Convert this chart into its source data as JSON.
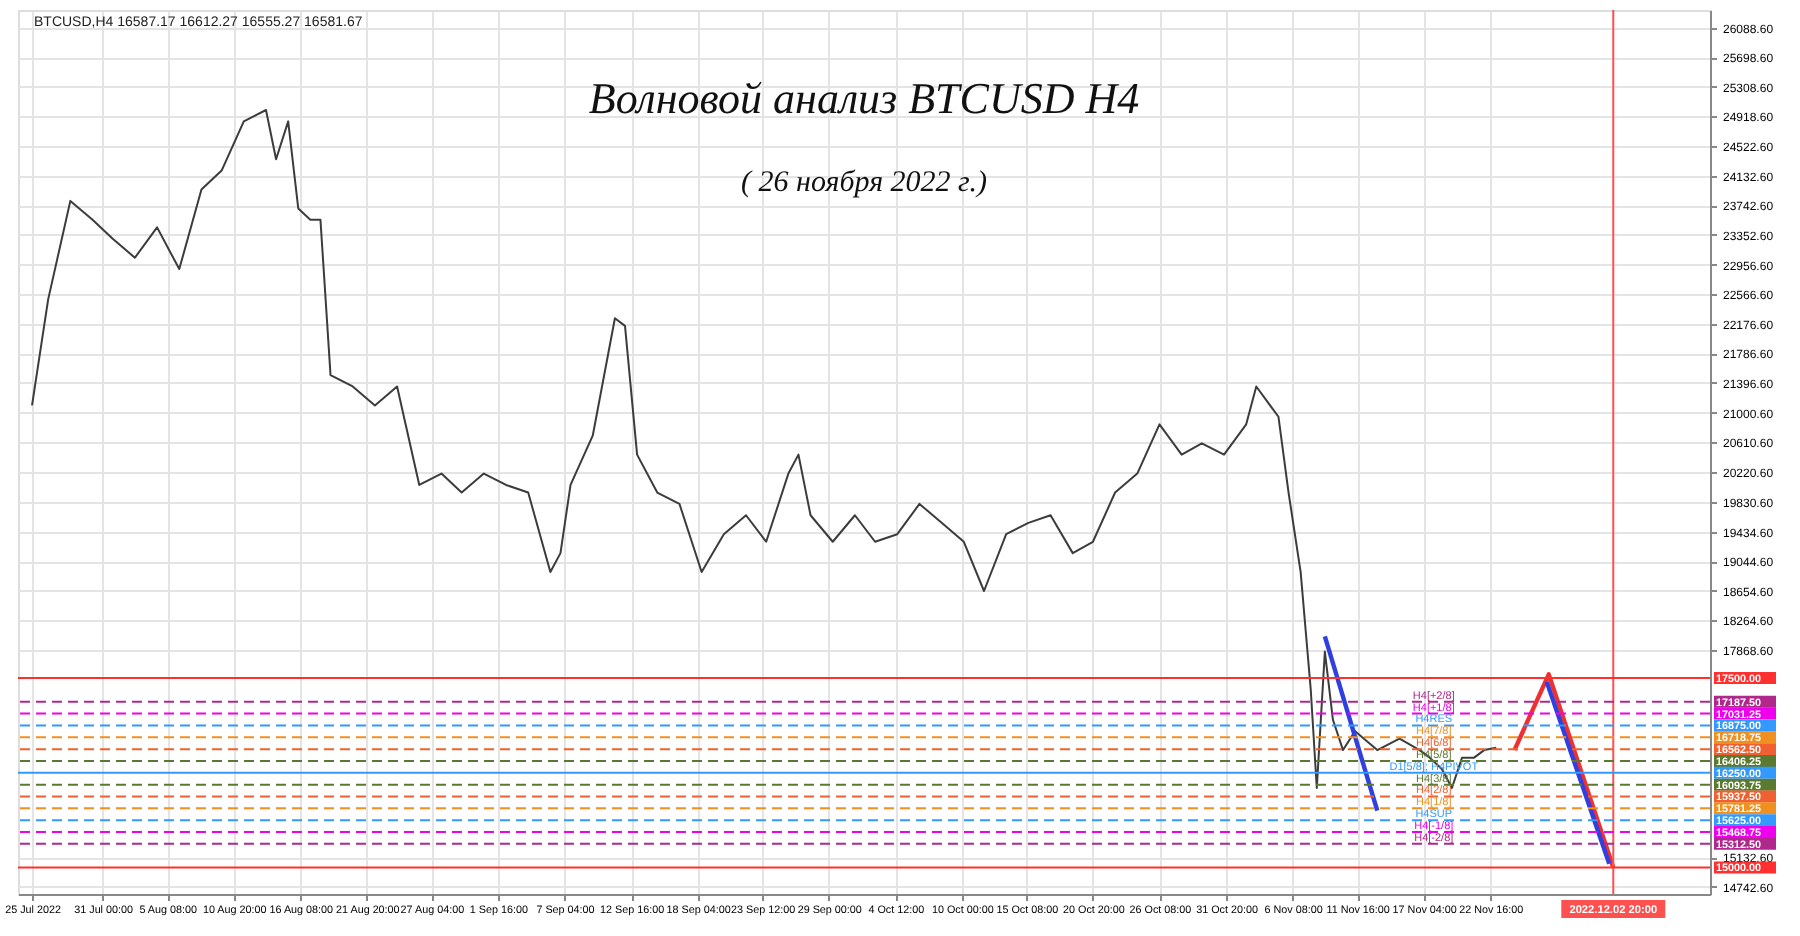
{
  "chart_data": {
    "type": "line",
    "title": "Волновой анализ BTCUSD H4",
    "subtitle": "( 26 ноября 2022 г.)",
    "annotations": [
      "BTCUSD,H4  16587.17 16612.27 16555.27 16581.67",
      {
        "text": "H4[+2/8]",
        "x": "2022-11-18T00:00",
        "y": 17187.5
      },
      {
        "text": "H4[+1/8]",
        "x": "2022-11-18T00:00",
        "y": 17031.25
      },
      {
        "text": "H4RES",
        "x": "2022-11-18T00:00",
        "y": 16875
      },
      {
        "text": "H4[7/8]",
        "x": "2022-11-18T00:00",
        "y": 16718.75
      },
      {
        "text": "H4[6/8]",
        "x": "2022-11-18T00:00",
        "y": 16562.5
      },
      {
        "text": "H4[5/8]",
        "x": "2022-11-18T00:00",
        "y": 16406.25
      },
      {
        "text": "D1[5/8]; H4PIVOT",
        "x": "2022-11-18T00:00",
        "y": 16250
      },
      {
        "text": "H4[3/8]",
        "x": "2022-11-18T00:00",
        "y": 16093.75
      },
      {
        "text": "H4[2/8]",
        "x": "2022-11-18T00:00",
        "y": 15937.5
      },
      {
        "text": "H4[1/8]",
        "x": "2022-11-18T00:00",
        "y": 15781.25
      },
      {
        "text": "H4SUP",
        "x": "2022-11-18T00:00",
        "y": 15625
      },
      {
        "text": "H4[-1/8]",
        "x": "2022-11-18T00:00",
        "y": 15468.75
      },
      {
        "text": "H4[-2/8]",
        "x": "2022-11-18T00:00",
        "y": 15312.5
      }
    ],
    "grid": true,
    "line_style": "solid",
    "marker": "none",
    "xlim": [
      "2022-07-24T20:00",
      "2022-12-10T00:00"
    ],
    "xticks": [
      {
        "value": "2022-07-25T04:00",
        "label": "25 Jul 2022"
      },
      {
        "value": "2022-07-31T00:00",
        "label": "31 Jul 00:00"
      },
      {
        "value": "2022-08-05T08:00",
        "label": "5 Aug 08:00"
      },
      {
        "value": "2022-08-10T20:00",
        "label": "10 Aug 20:00"
      },
      {
        "value": "2022-08-16T08:00",
        "label": "16 Aug 08:00"
      },
      {
        "value": "2022-08-21T20:00",
        "label": "21 Aug 20:00"
      },
      {
        "value": "2022-08-27T04:00",
        "label": "27 Aug 04:00"
      },
      {
        "value": "2022-09-01T16:00",
        "label": "1 Sep 16:00"
      },
      {
        "value": "2022-09-07T04:00",
        "label": "7 Sep 04:00"
      },
      {
        "value": "2022-09-12T16:00",
        "label": "12 Sep 16:00"
      },
      {
        "value": "2022-09-18T04:00",
        "label": "18 Sep 04:00"
      },
      {
        "value": "2022-09-23T12:00",
        "label": "23 Sep 12:00"
      },
      {
        "value": "2022-09-29T00:00",
        "label": "29 Sep 00:00"
      },
      {
        "value": "2022-10-04T12:00",
        "label": "4 Oct 12:00"
      },
      {
        "value": "2022-10-10T00:00",
        "label": "10 Oct 00:00"
      },
      {
        "value": "2022-10-15T08:00",
        "label": "15 Oct 08:00"
      },
      {
        "value": "2022-10-20T20:00",
        "label": "20 Oct 20:00"
      },
      {
        "value": "2022-10-26T08:00",
        "label": "26 Oct 08:00"
      },
      {
        "value": "2022-10-31T20:00",
        "label": "31 Oct 20:00"
      },
      {
        "value": "2022-11-06T08:00",
        "label": "6 Nov 08:00"
      },
      {
        "value": "2022-11-11T16:00",
        "label": "11 Nov 16:00"
      },
      {
        "value": "2022-11-17T04:00",
        "label": "17 Nov 04:00"
      },
      {
        "value": "2022-11-22T16:00",
        "label": "22 Nov 16:00"
      }
    ],
    "ylim": [
      14650,
      26320
    ],
    "yticks": [
      {
        "value": 26088.6,
        "label": "26088.60"
      },
      {
        "value": 25698.6,
        "label": "25698.60"
      },
      {
        "value": 25308.6,
        "label": "25308.60"
      },
      {
        "value": 24918.6,
        "label": "24918.60"
      },
      {
        "value": 24522.6,
        "label": "24522.60"
      },
      {
        "value": 24132.6,
        "label": "24132.60"
      },
      {
        "value": 23742.6,
        "label": "23742.60"
      },
      {
        "value": 23352.6,
        "label": "23352.60"
      },
      {
        "value": 22956.6,
        "label": "22956.60"
      },
      {
        "value": 22566.6,
        "label": "22566.60"
      },
      {
        "value": 22176.6,
        "label": "22176.60"
      },
      {
        "value": 21786.6,
        "label": "21786.60"
      },
      {
        "value": 21396.6,
        "label": "21396.60"
      },
      {
        "value": 21000.6,
        "label": "21000.60"
      },
      {
        "value": 20610.6,
        "label": "20610.60"
      },
      {
        "value": 20220.6,
        "label": "20220.60"
      },
      {
        "value": 19830.6,
        "label": "19830.60"
      },
      {
        "value": 19434.6,
        "label": "19434.60"
      },
      {
        "value": 19044.6,
        "label": "19044.60"
      },
      {
        "value": 18654.6,
        "label": "18654.60"
      },
      {
        "value": 18264.6,
        "label": "18264.60"
      },
      {
        "value": 17868.6,
        "label": "17868.60"
      },
      {
        "value": 15132.6,
        "label": "15132.60"
      },
      {
        "value": 14742.6,
        "label": "14742.60"
      }
    ],
    "series": [
      {
        "color": "#3c3c3c",
        "x": [
          "2022-07-25T04:00",
          "2022-07-26T12:00",
          "2022-07-28T08:00",
          "2022-07-30T04:00",
          "2022-07-31T20:00",
          "2022-08-02T16:00",
          "2022-08-04T12:00",
          "2022-08-06T08:00",
          "2022-08-08T04:00",
          "2022-08-09T20:00",
          "2022-08-11T16:00",
          "2022-08-13T12:00",
          "2022-08-14T08:00",
          "2022-08-15T08:00",
          "2022-08-16T04:00",
          "2022-08-17T04:00",
          "2022-08-18T00:00",
          "2022-08-18T20:00",
          "2022-08-20T16:00",
          "2022-08-22T12:00",
          "2022-08-24T08:00",
          "2022-08-26T04:00",
          "2022-08-28T00:00",
          "2022-08-29T16:00",
          "2022-08-31T12:00",
          "2022-09-02T08:00",
          "2022-09-04T04:00",
          "2022-09-06T00:00",
          "2022-09-06T20:00",
          "2022-09-07T16:00",
          "2022-09-09T12:00",
          "2022-09-11T08:00",
          "2022-09-12T04:00",
          "2022-09-13T04:00",
          "2022-09-14T20:00",
          "2022-09-16T16:00",
          "2022-09-18T12:00",
          "2022-09-20T08:00",
          "2022-09-22T04:00",
          "2022-09-23T20:00",
          "2022-09-25T16:00",
          "2022-09-26T12:00",
          "2022-09-27T12:00",
          "2022-09-29T08:00",
          "2022-10-01T04:00",
          "2022-10-02T20:00",
          "2022-10-04T16:00",
          "2022-10-06T12:00",
          "2022-10-08T08:00",
          "2022-10-10T04:00",
          "2022-10-11T20:00",
          "2022-10-13T16:00",
          "2022-10-15T12:00",
          "2022-10-17T08:00",
          "2022-10-19T04:00",
          "2022-10-20T20:00",
          "2022-10-22T16:00",
          "2022-10-24T12:00",
          "2022-10-26T08:00",
          "2022-10-28T04:00",
          "2022-10-29T20:00",
          "2022-10-31T16:00",
          "2022-11-02T12:00",
          "2022-11-03T08:00",
          "2022-11-05T04:00",
          "2022-11-06T00:00",
          "2022-11-07T00:00",
          "2022-11-07T20:00",
          "2022-11-08T08:00",
          "2022-11-09T00:00",
          "2022-11-09T16:00",
          "2022-11-10T12:00",
          "2022-11-11T12:00",
          "2022-11-13T08:00",
          "2022-11-15T04:00",
          "2022-11-16T20:00",
          "2022-11-17T16:00",
          "2022-11-18T16:00",
          "2022-11-19T12:00",
          "2022-11-20T08:00",
          "2022-11-21T08:00",
          "2022-11-22T04:00",
          "2022-11-23T04:00"
        ],
        "values": [
          21100,
          22500,
          23800,
          23550,
          23300,
          23050,
          23450,
          22900,
          23950,
          24200,
          24850,
          25000,
          24350,
          24850,
          23700,
          23550,
          23550,
          21500,
          21350,
          21100,
          21350,
          20050,
          20200,
          19950,
          20200,
          20050,
          19950,
          18900,
          19150,
          20050,
          20700,
          22250,
          22150,
          20450,
          19950,
          19800,
          18900,
          19400,
          19650,
          19300,
          20200,
          20450,
          19650,
          19300,
          19650,
          19300,
          19400,
          19800,
          19550,
          19300,
          18650,
          19400,
          19550,
          19650,
          19150,
          19300,
          19950,
          20200,
          20850,
          20450,
          20600,
          20450,
          20850,
          21350,
          20950,
          19950,
          18900,
          17350,
          16050,
          17850,
          16950,
          16550,
          16800,
          16550,
          16700,
          16550,
          16450,
          16300,
          16050,
          16450,
          16450,
          16550,
          16581.67
        ]
      },
      {
        "color": "#2f3fe0",
        "x": [
          "2022-11-09T00:00",
          "2022-11-13T08:00"
        ],
        "values": [
          18050,
          15750
        ]
      },
      {
        "color": "#f03030",
        "x": [
          "2022-11-24T16:00",
          "2022-11-27T12:00",
          "2022-12-02T20:00"
        ],
        "values": [
          16550,
          17550,
          15000
        ]
      },
      {
        "color": "#2f3fe0",
        "x": [
          "2022-11-27T08:00",
          "2022-12-02T12:00"
        ],
        "values": [
          17450,
          15050
        ]
      }
    ],
    "ref_lines": [
      {
        "axis": "x",
        "value": "2022-12-02T20:00",
        "label": "2022.12.02 20:00",
        "color": "#ff5050",
        "line_style": "solid"
      },
      {
        "axis": "y",
        "value": 17500,
        "label": "17500.00",
        "color": "#ff3030",
        "line_style": "solid"
      },
      {
        "axis": "y",
        "value": 17187.5,
        "label": "17187.50",
        "color": "#b0288c",
        "line_style": "dashed"
      },
      {
        "axis": "y",
        "value": 17031.25,
        "label": "17031.25",
        "color": "#ee00ee",
        "line_style": "dashed"
      },
      {
        "axis": "y",
        "value": 16875,
        "label": "16875.00",
        "color": "#3399ff",
        "line_style": "dashed"
      },
      {
        "axis": "y",
        "value": 16718.75,
        "label": "16718.75",
        "color": "#f09020",
        "line_style": "dashed"
      },
      {
        "axis": "y",
        "value": 16562.5,
        "label": "16562.50",
        "color": "#f06030",
        "line_style": "dashed"
      },
      {
        "axis": "y",
        "value": 16406.25,
        "label": "16406.25",
        "color": "#5a7a30",
        "line_style": "dashed"
      },
      {
        "axis": "y",
        "value": 16250,
        "label": "16250.00",
        "color": "#3399ff",
        "line_style": "solid"
      },
      {
        "axis": "y",
        "value": 16093.75,
        "label": "16093.75",
        "color": "#5a7a30",
        "line_style": "dashed"
      },
      {
        "axis": "y",
        "value": 15937.5,
        "label": "15937.50",
        "color": "#f06030",
        "line_style": "dashed"
      },
      {
        "axis": "y",
        "value": 15781.25,
        "label": "15781.25",
        "color": "#f09020",
        "line_style": "dashed"
      },
      {
        "axis": "y",
        "value": 15625,
        "label": "15625.00",
        "color": "#3399ff",
        "line_style": "dashed"
      },
      {
        "axis": "y",
        "value": 15468.75,
        "label": "15468.75",
        "color": "#ee00ee",
        "line_style": "dashed"
      },
      {
        "axis": "y",
        "value": 15312.5,
        "label": "15312.50",
        "color": "#b0288c",
        "line_style": "dashed"
      },
      {
        "axis": "y",
        "value": 15000,
        "label": "15000.00",
        "color": "#ff3030",
        "line_style": "solid"
      }
    ]
  }
}
